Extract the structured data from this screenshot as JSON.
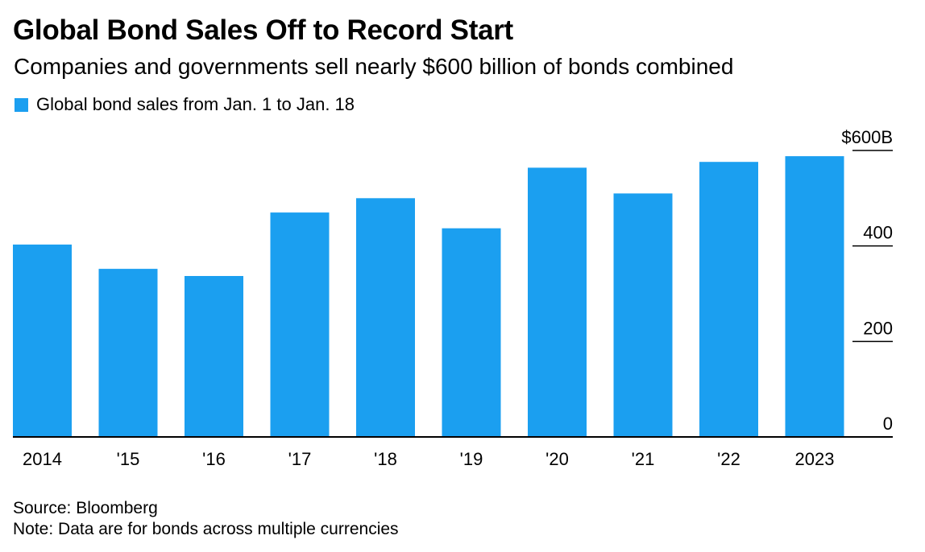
{
  "header": {
    "title": "Global Bond Sales Off to Record Start",
    "subtitle": "Companies and governments sell nearly $600 billion of bonds combined"
  },
  "legend": {
    "label": "Global bond sales from Jan. 1 to Jan. 18"
  },
  "colors": {
    "bar": "#1B9FF0",
    "axis": "#000000"
  },
  "chart_data": {
    "type": "bar",
    "title": "Global Bond Sales Off to Record Start",
    "subtitle": "Companies and governments sell nearly $600 billion of bonds combined",
    "categories": [
      "2014",
      "'15",
      "'16",
      "'17",
      "'18",
      "'19",
      "'20",
      "'21",
      "'22",
      "2023"
    ],
    "series": [
      {
        "name": "Global bond sales from Jan. 1 to Jan. 18",
        "values": [
          403,
          352,
          337,
          470,
          500,
          437,
          564,
          510,
          576,
          588
        ]
      }
    ],
    "ylim": [
      0,
      600
    ],
    "yticks": [
      0,
      200,
      400,
      600
    ],
    "ytick_labels": [
      "0",
      "200",
      "400",
      "$600B"
    ],
    "xlabel": "",
    "ylabel": "",
    "grid": false,
    "y_axis_side": "right",
    "legend_position": "top-left"
  },
  "footer": {
    "source": "Source: Bloomberg",
    "note": "Note: Data are for bonds across multiple currencies"
  }
}
